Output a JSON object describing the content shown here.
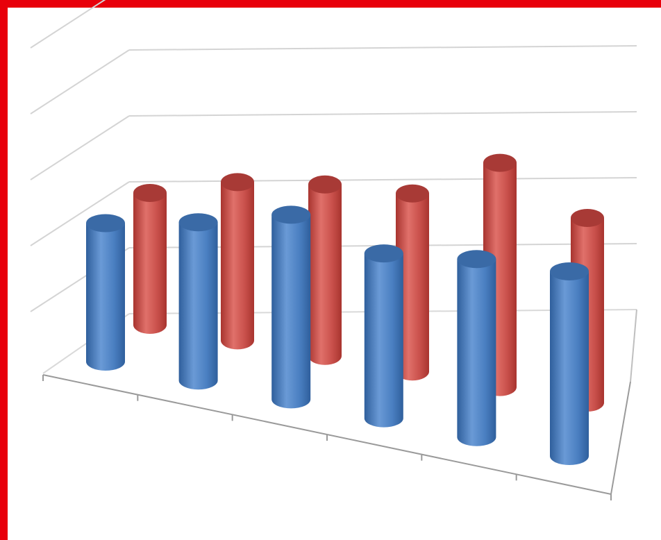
{
  "chart_data": {
    "type": "bar",
    "variant": "3d-cylinder",
    "title": "",
    "xlabel": "",
    "ylabel": "",
    "categories": [
      "",
      "",
      "",
      "",
      "",
      ""
    ],
    "ylim": [
      0,
      5
    ],
    "grid": true,
    "legend": "none",
    "series": [
      {
        "values": [
          2.0,
          2.4,
          2.6,
          2.7,
          3.4,
          2.8
        ],
        "color": "#c0504d"
      },
      {
        "values": [
          2.1,
          2.4,
          2.8,
          2.5,
          2.7,
          2.8
        ],
        "color": "#4f81bd"
      }
    ]
  },
  "frame": {
    "border_color": "#e8000b"
  }
}
